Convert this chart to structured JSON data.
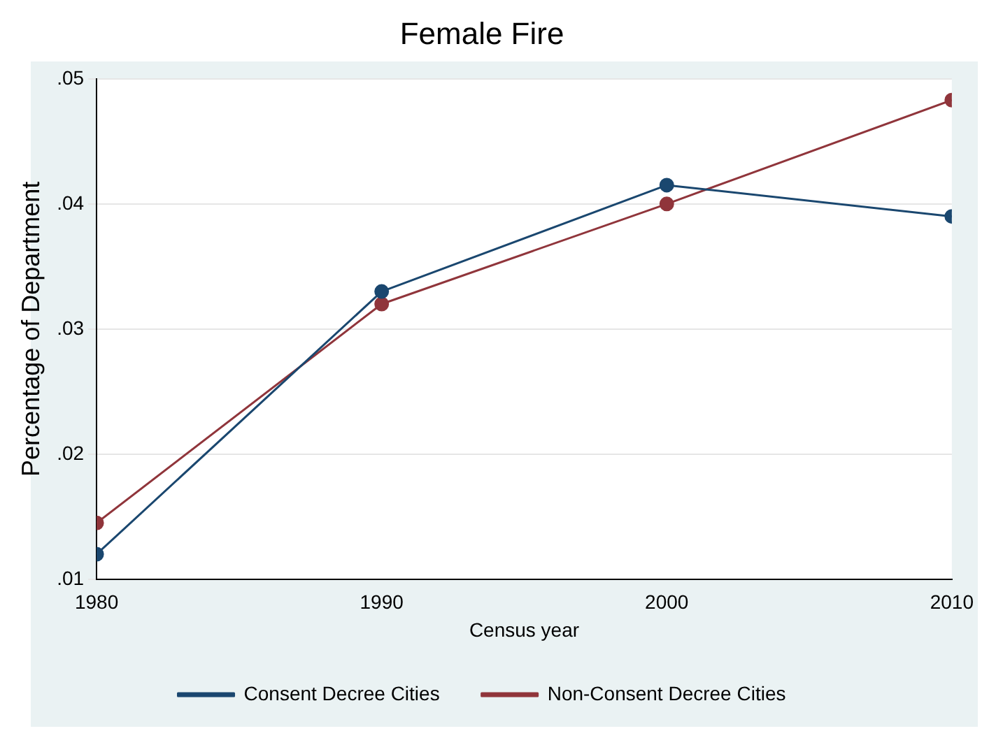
{
  "chart_data": {
    "type": "line",
    "title": "Female Fire",
    "xlabel": "Census year",
    "ylabel": "Percentage of Department",
    "x": [
      1980,
      1990,
      2000,
      2010
    ],
    "series": [
      {
        "name": "Consent Decree Cities",
        "color": "#1a476f",
        "values": [
          0.012,
          0.033,
          0.0415,
          0.039
        ]
      },
      {
        "name": "Non-Consent Decree Cities",
        "color": "#90353b",
        "values": [
          0.0145,
          0.032,
          0.04,
          0.0483
        ]
      }
    ],
    "xlim": [
      1980,
      2010
    ],
    "xticks": [
      1980,
      1990,
      2000,
      2010
    ],
    "ylim": [
      0.01,
      0.05
    ],
    "yticks": [
      {
        "value": 0.01,
        "label": ".01"
      },
      {
        "value": 0.02,
        "label": ".02"
      },
      {
        "value": 0.03,
        "label": ".03"
      },
      {
        "value": 0.04,
        "label": ".04"
      },
      {
        "value": 0.05,
        "label": ".05"
      }
    ],
    "grid": "y",
    "legend": "bottom",
    "marker": "circle",
    "line_style": "solid"
  }
}
